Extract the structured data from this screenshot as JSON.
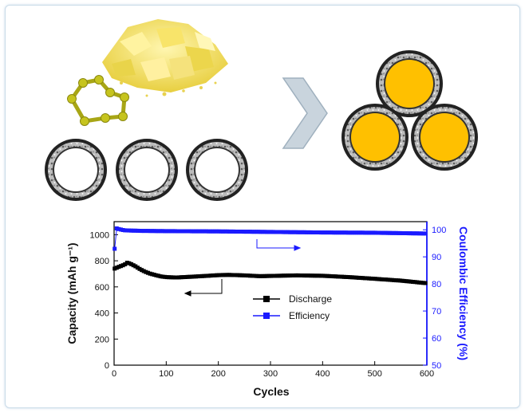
{
  "chart_data": {
    "type": "scatter",
    "xlabel": "Cycles",
    "ylabel_left": "Capacity (mAh g⁻¹)",
    "ylabel_right": "Coulombic Efficiency (%)",
    "xlim": [
      0,
      600
    ],
    "ylim_left": [
      0,
      1100
    ],
    "ylim_right": [
      50,
      103
    ],
    "x_ticks": [
      0,
      100,
      200,
      300,
      400,
      500,
      600
    ],
    "y_left_ticks": [
      0,
      200,
      400,
      600,
      800,
      1000
    ],
    "y_right_ticks": [
      50,
      60,
      70,
      80,
      90,
      100
    ],
    "series": [
      {
        "name": "Discharge",
        "axis": "left",
        "color": "#000000",
        "points": [
          [
            1,
            740
          ],
          [
            10,
            755
          ],
          [
            20,
            770
          ],
          [
            25,
            785
          ],
          [
            30,
            780
          ],
          [
            40,
            760
          ],
          [
            50,
            735
          ],
          [
            60,
            715
          ],
          [
            70,
            700
          ],
          [
            80,
            690
          ],
          [
            90,
            680
          ],
          [
            100,
            675
          ],
          [
            120,
            672
          ],
          [
            150,
            678
          ],
          [
            180,
            685
          ],
          [
            200,
            690
          ],
          [
            220,
            692
          ],
          [
            250,
            688
          ],
          [
            280,
            682
          ],
          [
            300,
            684
          ],
          [
            350,
            688
          ],
          [
            400,
            685
          ],
          [
            450,
            675
          ],
          [
            500,
            662
          ],
          [
            550,
            648
          ],
          [
            600,
            628
          ]
        ]
      },
      {
        "name": "Efficiency",
        "axis": "right",
        "color": "#1a1aff",
        "points": [
          [
            1,
            93
          ],
          [
            5,
            100.5
          ],
          [
            10,
            100.2
          ],
          [
            20,
            99.8
          ],
          [
            50,
            99.6
          ],
          [
            100,
            99.5
          ],
          [
            200,
            99.4
          ],
          [
            300,
            99.2
          ],
          [
            400,
            99.0
          ],
          [
            500,
            98.9
          ],
          [
            600,
            98.6
          ]
        ]
      }
    ],
    "legend_position": "center"
  },
  "colors": {
    "sulfur": "#ffc000",
    "sulfur_molecule": "#b5b51c",
    "sulfur_powder": "#f0e070",
    "shell": "#222222",
    "shell_porous": "#9a9a9a",
    "arrow": "#c8d3dc",
    "efficiency": "#1a1aff"
  },
  "icons": [
    "sulfur-powder-icon",
    "s8-ring-molecule-icon",
    "hollow-carbon-sphere-icon",
    "chevron-right-arrow-icon",
    "sulfur-filled-sphere-icon"
  ]
}
